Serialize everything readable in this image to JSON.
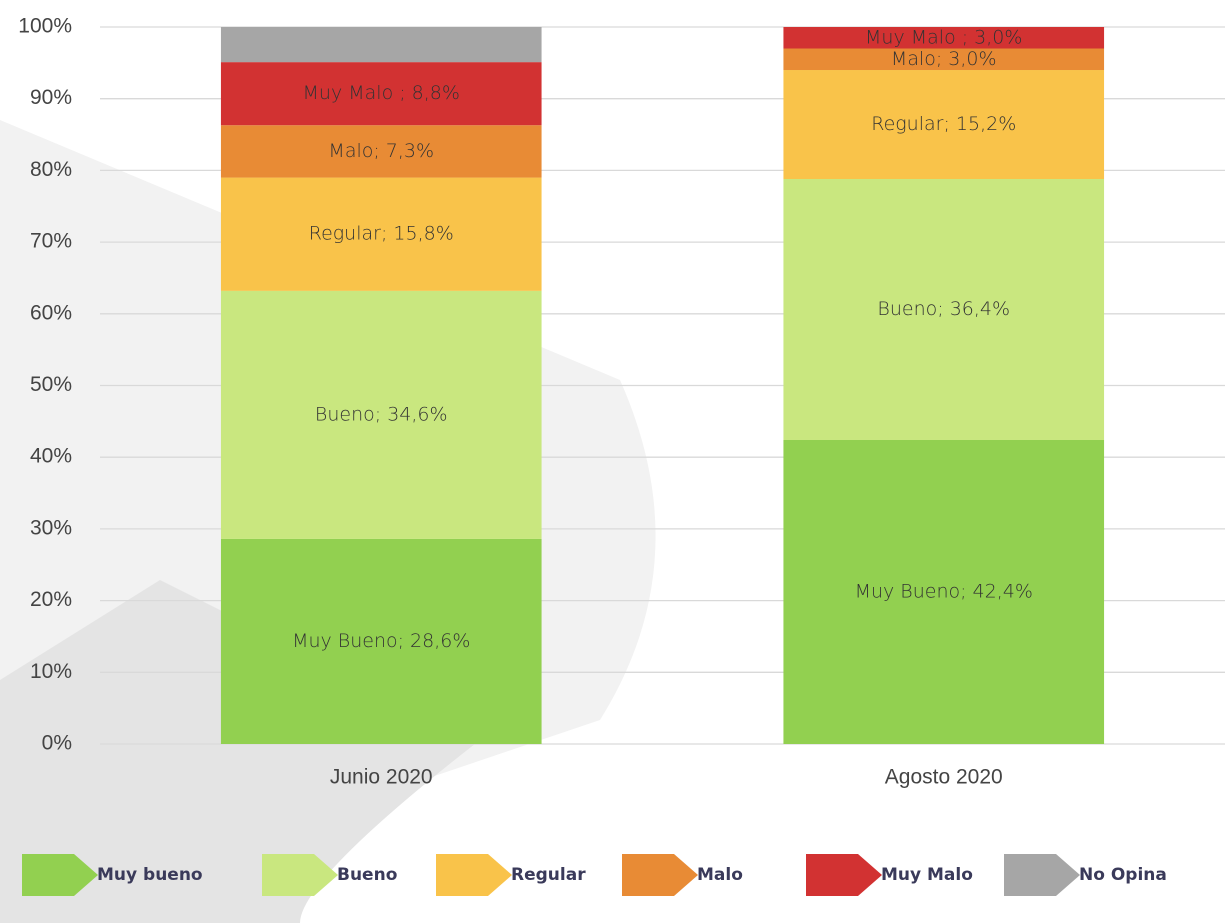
{
  "chart_data": {
    "type": "stacked_bar",
    "categories": [
      "Junio 2020",
      "Agosto 2020"
    ],
    "series": [
      {
        "name": "Muy bueno",
        "color": "#92d050",
        "values": [
          28.6,
          42.4
        ],
        "value_labels": [
          "Muy Bueno; 28,6%",
          "Muy Bueno; 42,4%"
        ]
      },
      {
        "name": "Bueno",
        "color": "#c9e77f",
        "values": [
          34.6,
          36.4
        ],
        "value_labels": [
          "Bueno; 34,6%",
          "Bueno; 36,4%"
        ]
      },
      {
        "name": "Regular",
        "color": "#f9c34a",
        "values": [
          15.8,
          15.2
        ],
        "value_labels": [
          "Regular; 15,8%",
          "Regular; 15,2%"
        ]
      },
      {
        "name": "Malo",
        "color": "#e88b35",
        "values": [
          7.3,
          3.0
        ],
        "value_labels": [
          "Malo; 7,3%",
          "Malo; 3,0%"
        ]
      },
      {
        "name": "Muy Malo",
        "color": "#d23232",
        "values": [
          8.8,
          3.0
        ],
        "value_labels": [
          "Muy Malo ; 8,8%",
          "Muy Malo ; 3,0%"
        ]
      },
      {
        "name": "No Opina",
        "color": "#a6a6a6",
        "values": [
          4.9,
          0
        ]
      }
    ],
    "ylim": [
      0,
      100
    ],
    "yticks": [
      {
        "value": 0,
        "label": "0%"
      },
      {
        "value": 10,
        "label": "10%"
      },
      {
        "value": 20,
        "label": "20%"
      },
      {
        "value": 30,
        "label": "30%"
      },
      {
        "value": 40,
        "label": "40%"
      },
      {
        "value": 50,
        "label": "50%"
      },
      {
        "value": 60,
        "label": "60%"
      },
      {
        "value": 70,
        "label": "70%"
      },
      {
        "value": 80,
        "label": "80%"
      },
      {
        "value": 90,
        "label": "90%"
      },
      {
        "value": 100,
        "label": "100%"
      }
    ],
    "grid": true,
    "legend": "bottom"
  }
}
